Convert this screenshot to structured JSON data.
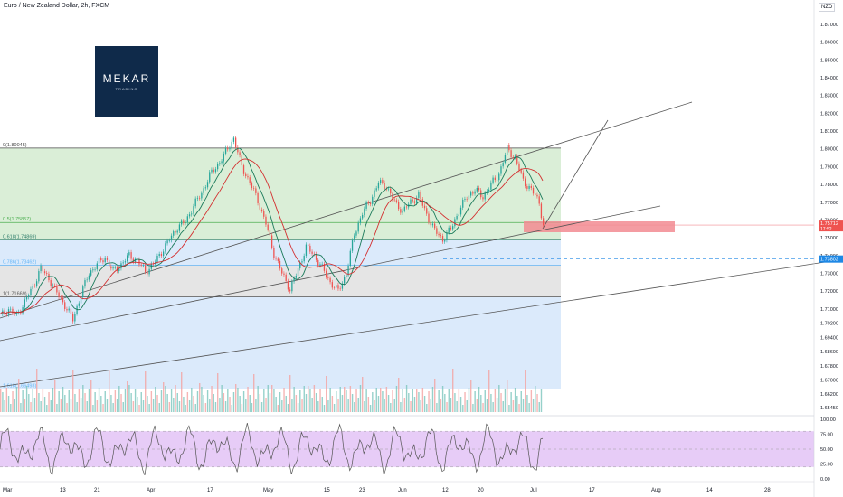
{
  "header": {
    "title": "Euro / New Zealand Dollar, 2h, FXCM",
    "currency": "NZD"
  },
  "logo": {
    "text": "MEKAR",
    "subtext": "TRADING"
  },
  "colors": {
    "up": "#26a69a",
    "down": "#ef5350",
    "ma": "#d32f2f",
    "ma2": "#1b7a5a",
    "fib_green": "#d6ecd3",
    "fib_blue": "#dbeafb",
    "fib_gray": "#e5e5e5",
    "rsi_band": "#e7ccf7",
    "rsi_line": "#555555"
  },
  "chart_data": {
    "type": "candlestick",
    "symbol": "EURNZD",
    "interval": "2h",
    "y_ticks": [
      "1.87000",
      "1.86000",
      "1.85000",
      "1.84000",
      "1.83000",
      "1.82000",
      "1.81000",
      "1.80000",
      "1.79000",
      "1.78000",
      "1.77000",
      "1.76000",
      "1.75000",
      "1.74000",
      "1.73000",
      "1.72000",
      "1.71000",
      "1.70200",
      "1.69400",
      "1.68600",
      "1.67800",
      "1.67000",
      "1.66200",
      "1.65450"
    ],
    "x_ticks": [
      "Mar",
      "13",
      "21",
      "Apr",
      "17",
      "May",
      "15",
      "23",
      "Jun",
      "12",
      "20",
      "Jul",
      "17",
      "Aug",
      "14",
      "28"
    ],
    "price_path": [
      [
        0,
        1.706
      ],
      [
        4,
        1.71
      ],
      [
        8,
        1.706
      ],
      [
        12,
        1.714
      ],
      [
        16,
        1.722
      ],
      [
        20,
        1.733
      ],
      [
        24,
        1.727
      ],
      [
        28,
        1.719
      ],
      [
        32,
        1.712
      ],
      [
        36,
        1.704
      ],
      [
        40,
        1.718
      ],
      [
        44,
        1.73
      ],
      [
        48,
        1.735
      ],
      [
        52,
        1.739
      ],
      [
        56,
        1.731
      ],
      [
        60,
        1.735
      ],
      [
        64,
        1.74
      ],
      [
        68,
        1.737
      ],
      [
        72,
        1.731
      ],
      [
        76,
        1.735
      ],
      [
        80,
        1.742
      ],
      [
        84,
        1.749
      ],
      [
        88,
        1.756
      ],
      [
        92,
        1.759
      ],
      [
        96,
        1.768
      ],
      [
        100,
        1.775
      ],
      [
        104,
        1.785
      ],
      [
        108,
        1.791
      ],
      [
        112,
        1.798
      ],
      [
        116,
        1.806
      ],
      [
        120,
        1.79
      ],
      [
        124,
        1.781
      ],
      [
        128,
        1.771
      ],
      [
        132,
        1.758
      ],
      [
        136,
        1.741
      ],
      [
        140,
        1.73
      ],
      [
        144,
        1.721
      ],
      [
        148,
        1.732
      ],
      [
        152,
        1.745
      ],
      [
        156,
        1.74
      ],
      [
        160,
        1.733
      ],
      [
        164,
        1.725
      ],
      [
        168,
        1.72
      ],
      [
        172,
        1.73
      ],
      [
        176,
        1.752
      ],
      [
        180,
        1.764
      ],
      [
        184,
        1.771
      ],
      [
        188,
        1.781
      ],
      [
        192,
        1.779
      ],
      [
        196,
        1.77
      ],
      [
        200,
        1.765
      ],
      [
        204,
        1.77
      ],
      [
        208,
        1.774
      ],
      [
        212,
        1.763
      ],
      [
        216,
        1.754
      ],
      [
        220,
        1.749
      ],
      [
        224,
        1.755
      ],
      [
        228,
        1.765
      ],
      [
        232,
        1.773
      ],
      [
        236,
        1.777
      ],
      [
        240,
        1.773
      ],
      [
        244,
        1.78
      ],
      [
        248,
        1.786
      ],
      [
        252,
        1.8
      ],
      [
        256,
        1.795
      ],
      [
        260,
        1.782
      ],
      [
        264,
        1.777
      ],
      [
        268,
        1.77
      ],
      [
        270,
        1.757
      ]
    ],
    "last_price": "1.75712",
    "countdown": "17:52",
    "dashed_level": "1.73802",
    "fib_levels": [
      {
        "label": "0(1.80045)",
        "value": 1.80045
      },
      {
        "label": "0.5(1.75857)",
        "value": 1.75857
      },
      {
        "label": "0.618(1.74869)",
        "value": 1.74869
      },
      {
        "label": "0.786(1.73462)",
        "value": 1.73462
      },
      {
        "label": "1(1.71669)",
        "value": 1.71669
      },
      {
        "label": "1.618(1.66493)",
        "value": 1.66493
      }
    ],
    "rsi": {
      "ticks": [
        "100.00",
        "75.00",
        "50.00",
        "25.00",
        "0.00"
      ],
      "band": [
        20,
        80
      ]
    }
  }
}
